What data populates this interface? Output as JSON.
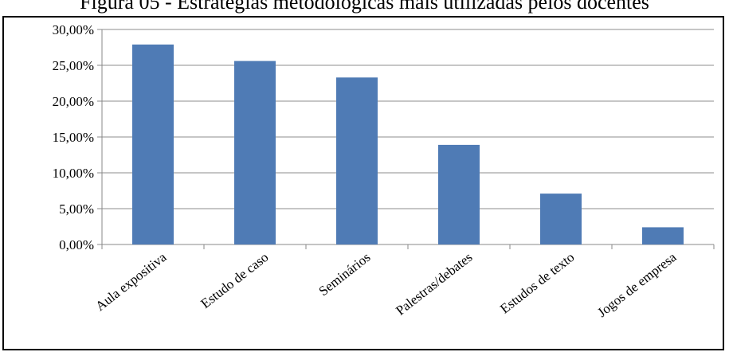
{
  "figure": {
    "caption": "Figura 05 - Estratégias metodológicas mais utilizadas pelos docentes"
  },
  "chart_data": {
    "type": "bar",
    "categories": [
      "Aula expositiva",
      "Estudo de caso",
      "Seminários",
      "Palestras/debates",
      "Estudos de texto",
      "Jogos de empresa"
    ],
    "values": [
      27.9,
      25.6,
      23.3,
      13.9,
      7.1,
      2.4
    ],
    "ylim": [
      0,
      30
    ],
    "yticks": [
      0,
      5,
      10,
      15,
      20,
      25,
      30
    ],
    "ytick_labels": [
      "0,00%",
      "5,00%",
      "10,00%",
      "15,00%",
      "20,00%",
      "25,00%",
      "30,00%"
    ],
    "grid": true,
    "legend": "none",
    "colors": {
      "bar": "#4F7BB5",
      "grid": "#8C8C8C",
      "axis": "#888888"
    }
  }
}
